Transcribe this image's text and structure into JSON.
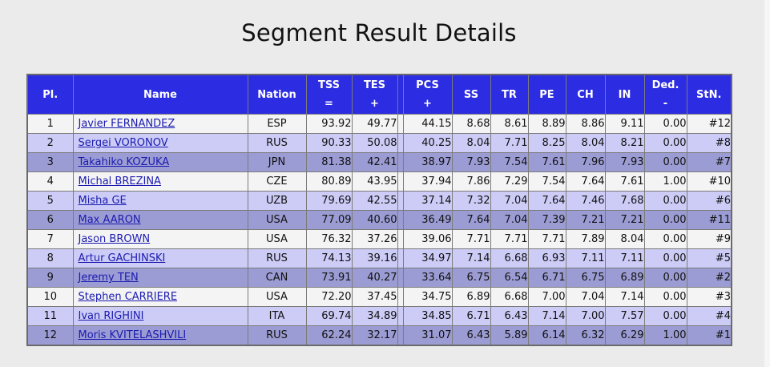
{
  "page": {
    "title": "Segment Result Details"
  },
  "table": {
    "headers": {
      "pl": "Pl.",
      "name": "Name",
      "nation": "Nation",
      "tss": "TSS",
      "tss_sub": "=",
      "tes": "TES",
      "tes_sub": "+",
      "pcs": "PCS",
      "pcs_sub": "+",
      "ss": "SS",
      "tr": "TR",
      "pe": "PE",
      "ch": "CH",
      "in": "IN",
      "ded": "Ded.",
      "ded_sub": "-",
      "stn": "StN."
    },
    "rows": [
      {
        "pl": "1",
        "name": "Javier FERNANDEZ",
        "nation": "ESP",
        "tss": "93.92",
        "tes": "49.77",
        "pcs": "44.15",
        "ss": "8.68",
        "tr": "8.61",
        "pe": "8.89",
        "ch": "8.86",
        "in": "9.11",
        "ded": "0.00",
        "stn": "#12"
      },
      {
        "pl": "2",
        "name": "Sergei VORONOV",
        "nation": "RUS",
        "tss": "90.33",
        "tes": "50.08",
        "pcs": "40.25",
        "ss": "8.04",
        "tr": "7.71",
        "pe": "8.25",
        "ch": "8.04",
        "in": "8.21",
        "ded": "0.00",
        "stn": "#8"
      },
      {
        "pl": "3",
        "name": "Takahiko KOZUKA",
        "nation": "JPN",
        "tss": "81.38",
        "tes": "42.41",
        "pcs": "38.97",
        "ss": "7.93",
        "tr": "7.54",
        "pe": "7.61",
        "ch": "7.96",
        "in": "7.93",
        "ded": "0.00",
        "stn": "#7"
      },
      {
        "pl": "4",
        "name": "Michal BREZINA",
        "nation": "CZE",
        "tss": "80.89",
        "tes": "43.95",
        "pcs": "37.94",
        "ss": "7.86",
        "tr": "7.29",
        "pe": "7.54",
        "ch": "7.64",
        "in": "7.61",
        "ded": "1.00",
        "stn": "#10"
      },
      {
        "pl": "5",
        "name": "Misha GE",
        "nation": "UZB",
        "tss": "79.69",
        "tes": "42.55",
        "pcs": "37.14",
        "ss": "7.32",
        "tr": "7.04",
        "pe": "7.64",
        "ch": "7.46",
        "in": "7.68",
        "ded": "0.00",
        "stn": "#6"
      },
      {
        "pl": "6",
        "name": "Max AARON",
        "nation": "USA",
        "tss": "77.09",
        "tes": "40.60",
        "pcs": "36.49",
        "ss": "7.64",
        "tr": "7.04",
        "pe": "7.39",
        "ch": "7.21",
        "in": "7.21",
        "ded": "0.00",
        "stn": "#11"
      },
      {
        "pl": "7",
        "name": "Jason BROWN",
        "nation": "USA",
        "tss": "76.32",
        "tes": "37.26",
        "pcs": "39.06",
        "ss": "7.71",
        "tr": "7.71",
        "pe": "7.71",
        "ch": "7.89",
        "in": "8.04",
        "ded": "0.00",
        "stn": "#9"
      },
      {
        "pl": "8",
        "name": "Artur GACHINSKI",
        "nation": "RUS",
        "tss": "74.13",
        "tes": "39.16",
        "pcs": "34.97",
        "ss": "7.14",
        "tr": "6.68",
        "pe": "6.93",
        "ch": "7.11",
        "in": "7.11",
        "ded": "0.00",
        "stn": "#5"
      },
      {
        "pl": "9",
        "name": "Jeremy TEN",
        "nation": "CAN",
        "tss": "73.91",
        "tes": "40.27",
        "pcs": "33.64",
        "ss": "6.75",
        "tr": "6.54",
        "pe": "6.71",
        "ch": "6.75",
        "in": "6.89",
        "ded": "0.00",
        "stn": "#2"
      },
      {
        "pl": "10",
        "name": "Stephen CARRIERE",
        "nation": "USA",
        "tss": "72.20",
        "tes": "37.45",
        "pcs": "34.75",
        "ss": "6.89",
        "tr": "6.68",
        "pe": "7.00",
        "ch": "7.04",
        "in": "7.14",
        "ded": "0.00",
        "stn": "#3"
      },
      {
        "pl": "11",
        "name": "Ivan RIGHINI",
        "nation": "ITA",
        "tss": "69.74",
        "tes": "34.89",
        "pcs": "34.85",
        "ss": "6.71",
        "tr": "6.43",
        "pe": "7.14",
        "ch": "7.00",
        "in": "7.57",
        "ded": "0.00",
        "stn": "#4"
      },
      {
        "pl": "12",
        "name": "Moris KVITELASHVILI",
        "nation": "RUS",
        "tss": "62.24",
        "tes": "32.17",
        "pcs": "31.07",
        "ss": "6.43",
        "tr": "5.89",
        "pe": "6.14",
        "ch": "6.32",
        "in": "6.29",
        "ded": "1.00",
        "stn": "#1"
      }
    ]
  },
  "colors": {
    "header_bg": "#2c2ce2",
    "row_white": "#f4f4f4",
    "row_light": "#ccccf7",
    "row_mid": "#9c9cd4",
    "link": "#1a1ab0"
  }
}
